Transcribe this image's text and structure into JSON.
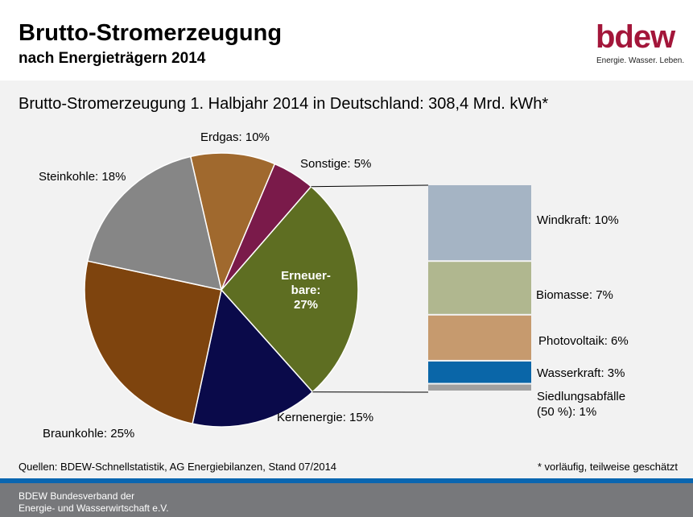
{
  "header": {
    "title": "Brutto-Stromerzeugung",
    "subtitle": "nach Energieträgern 2014",
    "logo": "bdew",
    "logo_tagline": "Energie. Wasser. Leben."
  },
  "chart_data": [
    {
      "type": "pie",
      "title": "Brutto-Stromerzeugung 1. Halbjahr 2014 in Deutschland: 308,4 Mrd. kWh*",
      "slices": [
        {
          "label": "Erdgas: 10%",
          "value": 10,
          "color": "#a0692e"
        },
        {
          "label": "Sonstige: 5%",
          "value": 5,
          "color": "#7a1a4a"
        },
        {
          "label": "Erneuer-bare: 27%",
          "value": 27,
          "color": "#5e6e22"
        },
        {
          "label": "Kernenergie: 15%",
          "value": 15,
          "color": "#0a0a4a"
        },
        {
          "label": "Braunkohle: 25%",
          "value": 25,
          "color": "#7e440e"
        },
        {
          "label": "Steinkohle: 18%",
          "value": 18,
          "color": "#868686"
        }
      ]
    },
    {
      "type": "bar",
      "stacked": true,
      "segments": [
        {
          "label": "Windkraft: 10%",
          "value": 10,
          "color": "#a5b4c4"
        },
        {
          "label": "Biomasse: 7%",
          "value": 7,
          "color": "#b0b78f"
        },
        {
          "label": "Photovoltaik: 6%",
          "value": 6,
          "color": "#c69a6e"
        },
        {
          "label": "Wasserkraft: 3%",
          "value": 3,
          "color": "#0a66a8"
        },
        {
          "label": "Siedlungsabfälle (50 %): 1%",
          "value": 1,
          "color": "#a0a0a0"
        }
      ]
    }
  ],
  "pie_inner": {
    "line1": "Erneuer-",
    "line2": "bare:",
    "line3": "27%"
  },
  "labels": {
    "siedlung1": "Siedlungsabfälle",
    "siedlung2": "(50 %): 1%"
  },
  "footnote": {
    "source": "Quellen: BDEW-Schnellstatistik,  AG Energiebilanzen, Stand 07/2014",
    "note": "* vorläufig, teilweise geschätzt"
  },
  "footer": {
    "line1": "BDEW Bundesverband der",
    "line2": "Energie- und Wasserwirtschaft e.V."
  }
}
